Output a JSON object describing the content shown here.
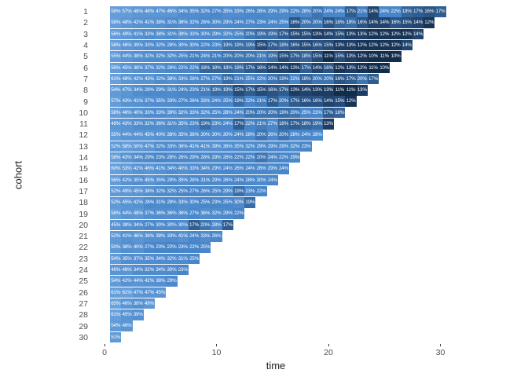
{
  "chart_data": {
    "type": "heatmap",
    "title": "",
    "xlabel": "time",
    "ylabel": "cohort",
    "unit": "%",
    "x_ticks": [
      0,
      10,
      20,
      30
    ],
    "xlim": [
      0,
      31
    ],
    "legend": "none",
    "grid": "off",
    "background": "#ffffff",
    "color_scale": {
      "low_value": 11,
      "low": "#122c4c",
      "mid_value": 22,
      "mid": "#4785c9",
      "high_value": 65,
      "high": "#6aa2dc"
    },
    "rows": [
      {
        "cohort": 1,
        "values": [
          58,
          57,
          48,
          48,
          47,
          46,
          34,
          35,
          32,
          27,
          35,
          33,
          26,
          26,
          29,
          29,
          22,
          28,
          20,
          24,
          24,
          17,
          21,
          14,
          24,
          22,
          18,
          17,
          16,
          17
        ]
      },
      {
        "cohort": 2,
        "values": [
          58,
          48,
          42,
          41,
          38,
          31,
          36,
          32,
          26,
          30,
          29,
          24,
          27,
          23,
          24,
          25,
          16,
          20,
          20,
          16,
          18,
          19,
          16,
          14,
          14,
          16,
          15,
          14,
          12
        ]
      },
      {
        "cohort": 3,
        "values": [
          56,
          49,
          41,
          33,
          38,
          31,
          39,
          33,
          30,
          29,
          32,
          25,
          20,
          19,
          19,
          17,
          15,
          15,
          13,
          14,
          15,
          13,
          13,
          12,
          12,
          12,
          12,
          14
        ]
      },
      {
        "cohort": 4,
        "values": [
          58,
          46,
          39,
          33,
          32,
          28,
          30,
          30,
          22,
          23,
          19,
          19,
          19,
          15,
          17,
          18,
          16,
          15,
          16,
          15,
          13,
          13,
          12,
          12,
          12,
          12,
          14
        ]
      },
      {
        "cohort": 5,
        "values": [
          55,
          44,
          38,
          32,
          32,
          32,
          25,
          21,
          24,
          21,
          20,
          20,
          20,
          21,
          19,
          15,
          17,
          18,
          15,
          11,
          15,
          13,
          12,
          10,
          11,
          10
        ]
      },
      {
        "cohort": 6,
        "values": [
          56,
          45,
          38,
          37,
          32,
          26,
          22,
          22,
          18,
          18,
          18,
          19,
          17,
          16,
          14,
          14,
          13,
          17,
          14,
          16,
          12,
          13,
          12,
          11,
          10
        ]
      },
      {
        "cohort": 7,
        "values": [
          61,
          48,
          42,
          43,
          32,
          38,
          33,
          28,
          27,
          27,
          19,
          21,
          25,
          22,
          20,
          19,
          22,
          18,
          20,
          20,
          16,
          17,
          20,
          17
        ]
      },
      {
        "cohort": 8,
        "values": [
          54,
          47,
          34,
          28,
          29,
          31,
          24,
          23,
          21,
          19,
          19,
          15,
          17,
          15,
          16,
          17,
          13,
          14,
          13,
          13,
          11,
          11,
          13
        ]
      },
      {
        "cohort": 9,
        "values": [
          57,
          43,
          41,
          37,
          35,
          33,
          27,
          26,
          33,
          24,
          25,
          19,
          22,
          21,
          17,
          20,
          17,
          16,
          16,
          14,
          15,
          12
        ]
      },
      {
        "cohort": 10,
        "values": [
          58,
          46,
          40,
          33,
          33,
          39,
          32,
          33,
          32,
          25,
          28,
          24,
          20,
          20,
          20,
          19,
          20,
          25,
          23,
          17,
          18
        ]
      },
      {
        "cohort": 11,
        "values": [
          48,
          43,
          33,
          32,
          36,
          31,
          35,
          23,
          19,
          23,
          24,
          17,
          22,
          21,
          27,
          18,
          17,
          18,
          19,
          13
        ]
      },
      {
        "cohort": 12,
        "values": [
          55,
          44,
          44,
          45,
          40,
          38,
          35,
          36,
          30,
          30,
          30,
          24,
          28,
          20,
          26,
          20,
          28,
          24,
          28
        ]
      },
      {
        "cohort": 13,
        "values": [
          52,
          58,
          50,
          47,
          32,
          33,
          36,
          41,
          41,
          39,
          36,
          35,
          32,
          29,
          29,
          29,
          32,
          23
        ]
      },
      {
        "cohort": 14,
        "values": [
          58,
          43,
          34,
          29,
          23,
          28,
          26,
          29,
          28,
          29,
          26,
          22,
          22,
          20,
          24,
          22,
          29
        ]
      },
      {
        "cohort": 15,
        "values": [
          60,
          53,
          42,
          46,
          41,
          34,
          40,
          33,
          34,
          29,
          24,
          26,
          24,
          26,
          29,
          24
        ]
      },
      {
        "cohort": 16,
        "values": [
          56,
          42,
          35,
          45,
          35,
          29,
          35,
          28,
          31,
          29,
          26,
          24,
          28,
          30,
          24
        ]
      },
      {
        "cohort": 17,
        "values": [
          52,
          49,
          45,
          38,
          32,
          32,
          25,
          27,
          26,
          25,
          29,
          19,
          23,
          22
        ]
      },
      {
        "cohort": 18,
        "values": [
          52,
          45,
          42,
          28,
          31,
          28,
          33,
          30,
          25,
          23,
          25,
          30,
          19
        ]
      },
      {
        "cohort": 19,
        "values": [
          58,
          44,
          48,
          37,
          36,
          36,
          36,
          27,
          36,
          32,
          29,
          22
        ]
      },
      {
        "cohort": 20,
        "values": [
          45,
          38,
          34,
          27,
          30,
          30,
          30,
          17,
          20,
          28,
          17
        ]
      },
      {
        "cohort": 21,
        "values": [
          52,
          41,
          46,
          38,
          38,
          33,
          41,
          24,
          33,
          26
        ]
      },
      {
        "cohort": 22,
        "values": [
          50,
          38,
          40,
          27,
          23,
          22,
          23,
          22,
          25
        ]
      },
      {
        "cohort": 23,
        "values": [
          54,
          35,
          37,
          35,
          34,
          32,
          31,
          25
        ]
      },
      {
        "cohort": 24,
        "values": [
          46,
          46,
          34,
          32,
          34,
          30,
          23
        ]
      },
      {
        "cohort": 25,
        "values": [
          54,
          42,
          44,
          42,
          38,
          29
        ]
      },
      {
        "cohort": 26,
        "values": [
          61,
          61,
          47,
          47,
          45
        ]
      },
      {
        "cohort": 27,
        "values": [
          65,
          46,
          38,
          49
        ]
      },
      {
        "cohort": 28,
        "values": [
          61,
          45,
          39
        ]
      },
      {
        "cohort": 29,
        "values": [
          54,
          46
        ]
      },
      {
        "cohort": 30,
        "values": [
          51
        ]
      }
    ]
  }
}
